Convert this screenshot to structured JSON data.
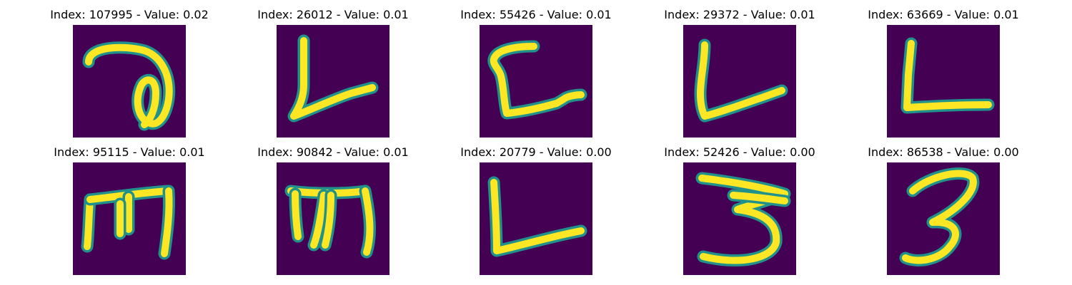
{
  "chart_data": {
    "type": "image-grid",
    "colormap": "viridis",
    "background_color": "#440154",
    "stroke_color": "#fde725",
    "edge_color": "#21918c",
    "axes_visible": false,
    "panels": [
      {
        "index": 107995,
        "value": "0.02",
        "title": "Index: 107995 - Value: 0.02",
        "glyph": "cursive-a-icon"
      },
      {
        "index": 26012,
        "value": "0.01",
        "title": "Index: 26012 - Value: 0.01",
        "glyph": "letter-l-icon"
      },
      {
        "index": 55426,
        "value": "0.01",
        "title": "Index: 55426 - Value: 0.01",
        "glyph": "letter-c-with-tail-icon"
      },
      {
        "index": 29372,
        "value": "0.01",
        "title": "Index: 29372 - Value: 0.01",
        "glyph": "letter-l-icon"
      },
      {
        "index": 63669,
        "value": "0.01",
        "title": "Index: 63669 - Value: 0.01",
        "glyph": "letter-l-icon"
      },
      {
        "index": 95115,
        "value": "0.01",
        "title": "Index: 95115 - Value: 0.01",
        "glyph": "letter-m-icon"
      },
      {
        "index": 90842,
        "value": "0.01",
        "title": "Index: 90842 - Value: 0.01",
        "glyph": "letter-m-icon"
      },
      {
        "index": 20779,
        "value": "0.00",
        "title": "Index: 20779 - Value: 0.00",
        "glyph": "letter-l-icon"
      },
      {
        "index": 52426,
        "value": "0.00",
        "title": "Index: 52426 - Value: 0.00",
        "glyph": "digit-3-icon"
      },
      {
        "index": 86538,
        "value": "0.00",
        "title": "Index: 86538 - Value: 0.00",
        "glyph": "digit-3-icon"
      }
    ]
  }
}
